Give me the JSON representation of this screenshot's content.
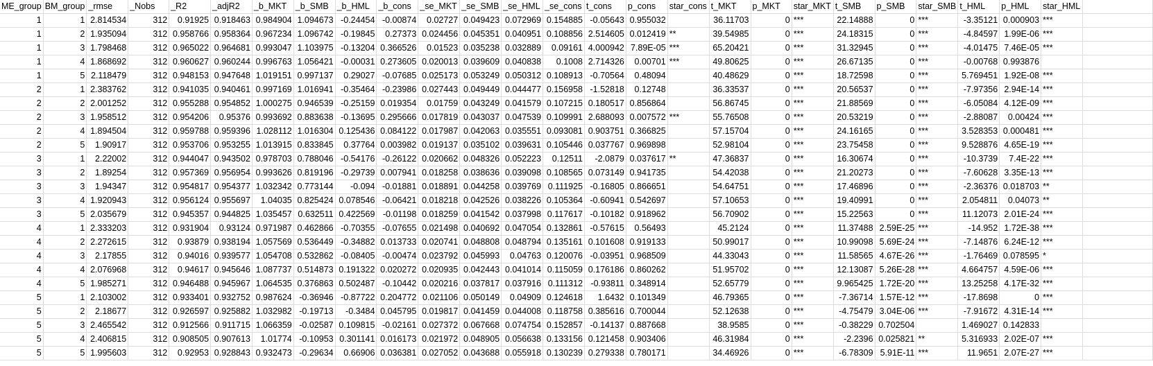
{
  "headers": [
    "ME_group",
    "BM_group",
    "_rmse",
    "_Nobs",
    "_R2",
    "_adjR2",
    "_b_MKT",
    "_b_SMB",
    "_b_HML",
    "_b_cons",
    "_se_MKT",
    "_se_SMB",
    "_se_HML",
    "_se_cons",
    "t_cons",
    "p_cons",
    "star_cons",
    "t_MKT",
    "p_MKT",
    "star_MKT",
    "t_SMB",
    "p_SMB",
    "star_SMB",
    "t_HML",
    "p_HML",
    "star_HML"
  ],
  "text_columns": [
    16,
    19,
    22,
    25
  ],
  "rows": [
    [
      "1",
      "1",
      "2.814534",
      "312",
      "0.91925",
      "0.918463",
      "0.984904",
      "1.094673",
      "-0.24454",
      "-0.00874",
      "0.02727",
      "0.049423",
      "0.072969",
      "0.154885",
      "-0.05643",
      "0.955032",
      "",
      "36.11703",
      "0",
      "***",
      "22.14888",
      "0",
      "***",
      "-3.35121",
      "0.000903",
      "***"
    ],
    [
      "1",
      "2",
      "1.935094",
      "312",
      "0.958766",
      "0.958364",
      "0.967234",
      "1.096742",
      "-0.19845",
      "0.27373",
      "0.024456",
      "0.045351",
      "0.040951",
      "0.108856",
      "2.514605",
      "0.012419",
      "**",
      "39.54985",
      "0",
      "***",
      "24.18315",
      "0",
      "***",
      "-4.84597",
      "1.99E-06",
      "***"
    ],
    [
      "1",
      "3",
      "1.798468",
      "312",
      "0.965022",
      "0.964681",
      "0.993047",
      "1.103975",
      "-0.13204",
      "0.366526",
      "0.01523",
      "0.035238",
      "0.032889",
      "0.09161",
      "4.000942",
      "7.89E-05",
      "***",
      "65.20421",
      "0",
      "***",
      "31.32945",
      "0",
      "***",
      "-4.01475",
      "7.46E-05",
      "***"
    ],
    [
      "1",
      "4",
      "1.868692",
      "312",
      "0.960627",
      "0.960244",
      "0.996763",
      "1.056421",
      "-0.00031",
      "0.273605",
      "0.020013",
      "0.039609",
      "0.040838",
      "0.1008",
      "2.714326",
      "0.00701",
      "***",
      "49.80625",
      "0",
      "***",
      "26.67135",
      "0",
      "***",
      "-0.00768",
      "0.993876",
      ""
    ],
    [
      "1",
      "5",
      "2.118479",
      "312",
      "0.948153",
      "0.947648",
      "1.019151",
      "0.997137",
      "0.29027",
      "-0.07685",
      "0.025173",
      "0.053249",
      "0.050312",
      "0.108913",
      "-0.70564",
      "0.48094",
      "",
      "40.48629",
      "0",
      "***",
      "18.72598",
      "0",
      "***",
      "5.769451",
      "1.92E-08",
      "***"
    ],
    [
      "2",
      "1",
      "2.383762",
      "312",
      "0.941035",
      "0.940461",
      "0.997169",
      "1.016941",
      "-0.35464",
      "-0.23986",
      "0.027443",
      "0.049449",
      "0.044477",
      "0.156958",
      "-1.52818",
      "0.12748",
      "",
      "36.33537",
      "0",
      "***",
      "20.56537",
      "0",
      "***",
      "-7.97356",
      "2.94E-14",
      "***"
    ],
    [
      "2",
      "2",
      "2.001252",
      "312",
      "0.955288",
      "0.954852",
      "1.000275",
      "0.946539",
      "-0.25159",
      "0.019354",
      "0.01759",
      "0.043249",
      "0.041579",
      "0.107215",
      "0.180517",
      "0.856864",
      "",
      "56.86745",
      "0",
      "***",
      "21.88569",
      "0",
      "***",
      "-6.05084",
      "4.12E-09",
      "***"
    ],
    [
      "2",
      "3",
      "1.958512",
      "312",
      "0.954206",
      "0.95376",
      "0.993692",
      "0.883638",
      "-0.13695",
      "0.295666",
      "0.017819",
      "0.043037",
      "0.047539",
      "0.109991",
      "2.688093",
      "0.007572",
      "***",
      "55.76508",
      "0",
      "***",
      "20.53219",
      "0",
      "***",
      "-2.88087",
      "0.00424",
      "***"
    ],
    [
      "2",
      "4",
      "1.894504",
      "312",
      "0.959788",
      "0.959396",
      "1.028112",
      "1.016304",
      "0.125436",
      "0.084122",
      "0.017987",
      "0.042063",
      "0.035551",
      "0.093081",
      "0.903751",
      "0.366825",
      "",
      "57.15704",
      "0",
      "***",
      "24.16165",
      "0",
      "***",
      "3.528353",
      "0.000481",
      "***"
    ],
    [
      "2",
      "5",
      "1.90917",
      "312",
      "0.953706",
      "0.953255",
      "1.013915",
      "0.833845",
      "0.37764",
      "0.003982",
      "0.019137",
      "0.035102",
      "0.039631",
      "0.105446",
      "0.037767",
      "0.969898",
      "",
      "52.98104",
      "0",
      "***",
      "23.75458",
      "0",
      "***",
      "9.528876",
      "4.65E-19",
      "***"
    ],
    [
      "3",
      "1",
      "2.22002",
      "312",
      "0.944047",
      "0.943502",
      "0.978703",
      "0.788046",
      "-0.54176",
      "-0.26122",
      "0.020662",
      "0.048326",
      "0.052223",
      "0.12511",
      "-2.0879",
      "0.037617",
      "**",
      "47.36837",
      "0",
      "***",
      "16.30674",
      "0",
      "***",
      "-10.3739",
      "7.4E-22",
      "***"
    ],
    [
      "3",
      "2",
      "1.89254",
      "312",
      "0.957369",
      "0.956954",
      "0.993626",
      "0.819196",
      "-0.29739",
      "0.007941",
      "0.018258",
      "0.038636",
      "0.039098",
      "0.108565",
      "0.073149",
      "0.941735",
      "",
      "54.42038",
      "0",
      "***",
      "21.20273",
      "0",
      "***",
      "-7.60628",
      "3.35E-13",
      "***"
    ],
    [
      "3",
      "3",
      "1.94347",
      "312",
      "0.954817",
      "0.954377",
      "1.032342",
      "0.773144",
      "-0.094",
      "-0.01881",
      "0.018891",
      "0.044258",
      "0.039769",
      "0.111925",
      "-0.16805",
      "0.866651",
      "",
      "54.64751",
      "0",
      "***",
      "17.46896",
      "0",
      "***",
      "-2.36376",
      "0.018703",
      "**"
    ],
    [
      "3",
      "4",
      "1.920943",
      "312",
      "0.956124",
      "0.955697",
      "1.04035",
      "0.825424",
      "0.078546",
      "-0.06421",
      "0.018218",
      "0.042526",
      "0.038226",
      "0.105364",
      "-0.60941",
      "0.542697",
      "",
      "57.10653",
      "0",
      "***",
      "19.40991",
      "0",
      "***",
      "2.054811",
      "0.04073",
      "**"
    ],
    [
      "3",
      "5",
      "2.035679",
      "312",
      "0.945357",
      "0.944825",
      "1.035457",
      "0.632511",
      "0.422569",
      "-0.01198",
      "0.018259",
      "0.041542",
      "0.037998",
      "0.117617",
      "-0.10182",
      "0.918962",
      "",
      "56.70902",
      "0",
      "***",
      "15.22563",
      "0",
      "***",
      "11.12073",
      "2.01E-24",
      "***"
    ],
    [
      "4",
      "1",
      "2.333203",
      "312",
      "0.931904",
      "0.93124",
      "0.971987",
      "0.462866",
      "-0.70355",
      "-0.07655",
      "0.021498",
      "0.040692",
      "0.047054",
      "0.132861",
      "-0.57615",
      "0.56493",
      "",
      "45.2124",
      "0",
      "***",
      "11.37488",
      "2.59E-25",
      "***",
      "-14.952",
      "1.72E-38",
      "***"
    ],
    [
      "4",
      "2",
      "2.272615",
      "312",
      "0.93879",
      "0.938194",
      "1.057569",
      "0.536449",
      "-0.34882",
      "0.013733",
      "0.020741",
      "0.048808",
      "0.048794",
      "0.135161",
      "0.101608",
      "0.919133",
      "",
      "50.99017",
      "0",
      "***",
      "10.99098",
      "5.69E-24",
      "***",
      "-7.14876",
      "6.24E-12",
      "***"
    ],
    [
      "4",
      "3",
      "2.17855",
      "312",
      "0.94016",
      "0.939577",
      "1.054708",
      "0.532862",
      "-0.08405",
      "-0.00474",
      "0.023792",
      "0.045993",
      "0.04763",
      "0.120076",
      "-0.03951",
      "0.968509",
      "",
      "44.33043",
      "0",
      "***",
      "11.58565",
      "4.67E-26",
      "***",
      "-1.76469",
      "0.078595",
      "*"
    ],
    [
      "4",
      "4",
      "2.076968",
      "312",
      "0.94617",
      "0.945646",
      "1.087737",
      "0.514873",
      "0.191322",
      "0.020272",
      "0.020935",
      "0.042443",
      "0.041014",
      "0.115059",
      "0.176186",
      "0.860262",
      "",
      "51.95702",
      "0",
      "***",
      "12.13087",
      "5.26E-28",
      "***",
      "4.664757",
      "4.59E-06",
      "***"
    ],
    [
      "4",
      "5",
      "1.985271",
      "312",
      "0.946488",
      "0.945967",
      "1.064535",
      "0.376863",
      "0.502487",
      "-0.10442",
      "0.020216",
      "0.037817",
      "0.037916",
      "0.111312",
      "-0.93811",
      "0.348914",
      "",
      "52.65779",
      "0",
      "***",
      "9.965425",
      "1.72E-20",
      "***",
      "13.25258",
      "4.17E-32",
      "***"
    ],
    [
      "5",
      "1",
      "2.103002",
      "312",
      "0.933401",
      "0.932752",
      "0.987624",
      "-0.36946",
      "-0.87722",
      "0.204772",
      "0.021106",
      "0.050149",
      "0.04909",
      "0.124618",
      "1.6432",
      "0.101349",
      "",
      "46.79365",
      "0",
      "***",
      "-7.36714",
      "1.57E-12",
      "***",
      "-17.8698",
      "0",
      "***"
    ],
    [
      "5",
      "2",
      "2.18677",
      "312",
      "0.926597",
      "0.925882",
      "1.032982",
      "-0.19713",
      "-0.3484",
      "0.045795",
      "0.019817",
      "0.041459",
      "0.044008",
      "0.118758",
      "0.385616",
      "0.700044",
      "",
      "52.12638",
      "0",
      "***",
      "-4.75479",
      "3.04E-06",
      "***",
      "-7.91672",
      "4.31E-14",
      "***"
    ],
    [
      "5",
      "3",
      "2.465542",
      "312",
      "0.912566",
      "0.911715",
      "1.066359",
      "-0.02587",
      "0.109815",
      "-0.02161",
      "0.027372",
      "0.067668",
      "0.074754",
      "0.152857",
      "-0.14137",
      "0.887668",
      "",
      "38.9585",
      "0",
      "***",
      "-0.38229",
      "0.702504",
      "",
      "1.469027",
      "0.142833",
      ""
    ],
    [
      "5",
      "4",
      "2.406815",
      "312",
      "0.908505",
      "0.907613",
      "1.01774",
      "-0.10953",
      "0.301141",
      "0.016173",
      "0.021972",
      "0.048905",
      "0.056638",
      "0.133156",
      "0.121458",
      "0.903406",
      "",
      "46.31984",
      "0",
      "***",
      "-2.2396",
      "0.025821",
      "**",
      "5.316933",
      "2.02E-07",
      "***"
    ],
    [
      "5",
      "5",
      "1.995603",
      "312",
      "0.92953",
      "0.928843",
      "0.932473",
      "-0.29634",
      "0.66906",
      "0.036381",
      "0.027052",
      "0.043688",
      "0.055918",
      "0.130239",
      "0.279338",
      "0.780171",
      "",
      "34.46926",
      "0",
      "***",
      "-6.78309",
      "5.91E-11",
      "***",
      "11.9651",
      "2.07E-27",
      "***"
    ]
  ]
}
